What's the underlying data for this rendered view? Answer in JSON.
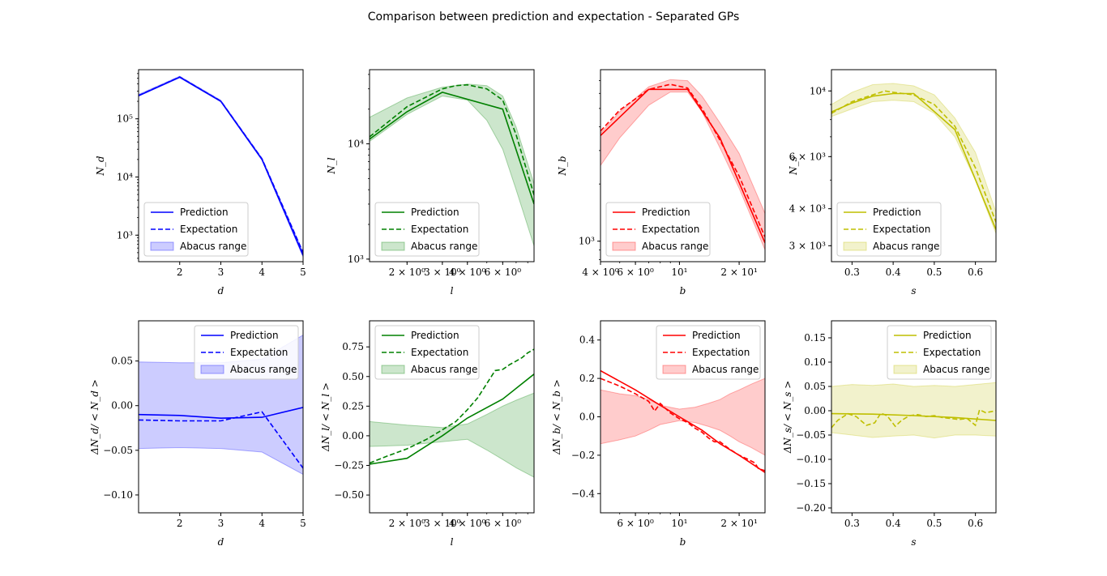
{
  "figure_title": "Comparison between prediction and expectation - Separated GPs",
  "colors": {
    "d": "#0000ff",
    "l": "#008000",
    "b": "#ff0000",
    "s": "#bfbf00"
  },
  "legend_labels": [
    "Prediction",
    "Expectation",
    "Abacus range"
  ],
  "chart_data": [
    {
      "type": "line",
      "row": "top",
      "var": "d",
      "title": "",
      "xlabel": "d",
      "ylabel": "N_d",
      "xscale": "linear",
      "yscale": "log",
      "xlim": [
        1,
        5
      ],
      "ylim": [
        350,
        700000
      ],
      "xticks": [
        {
          "v": 2,
          "label": "2"
        },
        {
          "v": 3,
          "label": "3"
        },
        {
          "v": 4,
          "label": "4"
        },
        {
          "v": 5,
          "label": "5"
        }
      ],
      "yticks": [
        {
          "v": 1000,
          "label": "10³"
        },
        {
          "v": 10000,
          "label": "10⁴"
        },
        {
          "v": 100000,
          "label": "10⁵"
        }
      ],
      "legend": "lower-left",
      "series": [
        {
          "name": "Prediction",
          "style": "solid",
          "x": [
            1,
            2,
            3,
            4,
            5
          ],
          "y": [
            250000,
            520000,
            200000,
            20000,
            450
          ]
        },
        {
          "name": "Expectation",
          "style": "dashed",
          "x": [
            1,
            2,
            3,
            4,
            5
          ],
          "y": [
            252000,
            525000,
            202000,
            20500,
            500
          ]
        },
        {
          "name": "Abacus range",
          "style": "band",
          "x": [
            1,
            2,
            3,
            4,
            5
          ],
          "lower": [
            245000,
            510000,
            196000,
            19500,
            420
          ],
          "upper": [
            262000,
            540000,
            208000,
            21000,
            520
          ]
        }
      ]
    },
    {
      "type": "line",
      "row": "top",
      "var": "l",
      "title": "",
      "xlabel": "l",
      "ylabel": "N_l",
      "xscale": "log",
      "yscale": "log",
      "xlim": [
        1.3,
        8.6
      ],
      "ylim": [
        950,
        44000
      ],
      "xticks": [
        {
          "v": 2,
          "label": "2 × 10⁰"
        },
        {
          "v": 3,
          "label": "3 × 10⁰"
        },
        {
          "v": 4,
          "label": "4 × 10⁰"
        },
        {
          "v": 6,
          "label": "6 × 10⁰"
        }
      ],
      "yticks": [
        {
          "v": 1000,
          "label": "10³"
        },
        {
          "v": 10000,
          "label": "10⁴"
        }
      ],
      "legend": "lower-left",
      "series": [
        {
          "name": "Prediction",
          "style": "solid",
          "x": [
            1.3,
            2,
            3,
            6,
            8.6
          ],
          "y": [
            11000,
            19000,
            28000,
            20000,
            3000
          ]
        },
        {
          "name": "Expectation",
          "style": "dashed",
          "x": [
            1.3,
            2,
            3,
            3.5,
            4,
            5,
            6,
            7,
            8.6
          ],
          "y": [
            11500,
            21000,
            30000,
            32000,
            32500,
            30000,
            24000,
            12000,
            3600
          ]
        },
        {
          "name": "Abacus range",
          "style": "band",
          "x": [
            1.3,
            2,
            3,
            4,
            5,
            6,
            7,
            8.6
          ],
          "lower": [
            10500,
            18000,
            26000,
            24000,
            16000,
            9000,
            4000,
            1300
          ],
          "upper": [
            17000,
            25000,
            31000,
            33000,
            32000,
            26000,
            14000,
            4500
          ]
        }
      ]
    },
    {
      "type": "line",
      "row": "top",
      "var": "b",
      "title": "",
      "xlabel": "b",
      "ylabel": "N_b",
      "xscale": "log",
      "yscale": "log",
      "xlim": [
        4,
        27
      ],
      "ylim": [
        780,
        8000
      ],
      "xticks": [
        {
          "v": 4,
          "label": "4 × 10⁰"
        },
        {
          "v": 6,
          "label": "6 × 10⁰"
        },
        {
          "v": 10,
          "label": "10¹"
        },
        {
          "v": 20,
          "label": "2 × 10¹"
        }
      ],
      "yticks": [
        {
          "v": 1000,
          "label": "10³"
        }
      ],
      "legend": "lower-left",
      "series": [
        {
          "name": "Prediction",
          "style": "solid",
          "x": [
            4,
            7,
            11,
            16,
            27
          ],
          "y": [
            3600,
            6300,
            6300,
            3500,
            980
          ]
        },
        {
          "name": "Expectation",
          "style": "dashed",
          "x": [
            4,
            5,
            7,
            9,
            11,
            13,
            16,
            20,
            27
          ],
          "y": [
            3800,
            4900,
            6300,
            6700,
            6400,
            5000,
            3400,
            2200,
            1050
          ]
        },
        {
          "name": "Abacus range",
          "style": "band",
          "x": [
            4,
            5,
            7,
            9,
            11,
            13,
            16,
            20,
            27
          ],
          "lower": [
            2500,
            3500,
            5200,
            6100,
            6100,
            4800,
            3100,
            1900,
            900
          ],
          "upper": [
            3700,
            4800,
            6500,
            7100,
            7000,
            5800,
            4200,
            2900,
            1400
          ]
        }
      ]
    },
    {
      "type": "line",
      "row": "top",
      "var": "s",
      "title": "",
      "xlabel": "s",
      "ylabel": "N_s",
      "xscale": "linear",
      "yscale": "log",
      "xlim": [
        0.25,
        0.65
      ],
      "ylim": [
        2650,
        11800
      ],
      "xticks": [
        {
          "v": 0.3,
          "label": "0.3"
        },
        {
          "v": 0.4,
          "label": "0.4"
        },
        {
          "v": 0.5,
          "label": "0.5"
        },
        {
          "v": 0.6,
          "label": "0.6"
        }
      ],
      "yticks": [
        {
          "v": 3000,
          "label": "3 × 10³"
        },
        {
          "v": 4000,
          "label": "4 × 10³"
        },
        {
          "v": 6000,
          "label": "6 × 10³"
        },
        {
          "v": 10000,
          "label": "10⁴"
        }
      ],
      "legend": "lower-left",
      "series": [
        {
          "name": "Prediction",
          "style": "solid",
          "x": [
            0.25,
            0.3,
            0.35,
            0.4,
            0.45,
            0.55,
            0.65
          ],
          "y": [
            8500,
            9100,
            9600,
            9800,
            9800,
            7400,
            3400
          ]
        },
        {
          "name": "Expectation",
          "style": "dashed",
          "x": [
            0.25,
            0.3,
            0.35,
            0.38,
            0.4,
            0.45,
            0.5,
            0.55,
            0.6,
            0.65
          ],
          "y": [
            8400,
            9200,
            9700,
            10000,
            9900,
            9700,
            9000,
            7600,
            5500,
            3600
          ]
        },
        {
          "name": "Abacus range",
          "style": "band",
          "x": [
            0.25,
            0.3,
            0.35,
            0.4,
            0.45,
            0.5,
            0.55,
            0.6,
            0.65
          ],
          "lower": [
            8200,
            8700,
            9200,
            9300,
            9200,
            8400,
            7000,
            5000,
            3300
          ],
          "upper": [
            9000,
            9900,
            10500,
            10600,
            10400,
            9700,
            8100,
            6200,
            3900
          ]
        }
      ]
    },
    {
      "type": "line",
      "row": "bottom",
      "var": "d",
      "title": "",
      "xlabel": "d",
      "ylabel": "ΔN_d/ < N_d >",
      "xscale": "linear",
      "yscale": "linear",
      "xlim": [
        1,
        5
      ],
      "ylim": [
        -0.12,
        0.095
      ],
      "xticks": [
        {
          "v": 2,
          "label": "2"
        },
        {
          "v": 3,
          "label": "3"
        },
        {
          "v": 4,
          "label": "4"
        },
        {
          "v": 5,
          "label": "5"
        }
      ],
      "yticks": [
        {
          "v": -0.1,
          "label": "−0.10"
        },
        {
          "v": -0.05,
          "label": "−0.05"
        },
        {
          "v": 0.0,
          "label": "0.00"
        },
        {
          "v": 0.05,
          "label": "0.05"
        }
      ],
      "legend": "upper-right",
      "series": [
        {
          "name": "Prediction",
          "style": "solid",
          "x": [
            1,
            2,
            3,
            4,
            5
          ],
          "y": [
            -0.01,
            -0.011,
            -0.014,
            -0.013,
            -0.002
          ]
        },
        {
          "name": "Expectation",
          "style": "dashed",
          "x": [
            1,
            2,
            3,
            4,
            5
          ],
          "y": [
            -0.016,
            -0.017,
            -0.017,
            -0.007,
            -0.07
          ]
        },
        {
          "name": "Abacus range",
          "style": "band",
          "x": [
            1,
            2,
            3,
            4,
            5
          ],
          "lower": [
            -0.048,
            -0.047,
            -0.048,
            -0.052,
            -0.077
          ],
          "upper": [
            0.049,
            0.048,
            0.048,
            0.052,
            0.079
          ]
        }
      ]
    },
    {
      "type": "line",
      "row": "bottom",
      "var": "l",
      "title": "",
      "xlabel": "l",
      "ylabel": "ΔN_l/ < N_l >",
      "xscale": "log",
      "yscale": "linear",
      "xlim": [
        1.3,
        8.6
      ],
      "ylim": [
        -0.65,
        0.97
      ],
      "xticks": [
        {
          "v": 2,
          "label": "2 × 10⁰"
        },
        {
          "v": 3,
          "label": "3 × 10⁰"
        },
        {
          "v": 4,
          "label": "4 × 10⁰"
        },
        {
          "v": 6,
          "label": "6 × 10⁰"
        }
      ],
      "yticks": [
        {
          "v": -0.5,
          "label": "−0.50"
        },
        {
          "v": -0.25,
          "label": "−0.25"
        },
        {
          "v": 0.0,
          "label": "0.00"
        },
        {
          "v": 0.25,
          "label": "0.25"
        },
        {
          "v": 0.5,
          "label": "0.50"
        },
        {
          "v": 0.75,
          "label": "0.75"
        }
      ],
      "legend": "upper-left",
      "series": [
        {
          "name": "Prediction",
          "style": "solid",
          "x": [
            1.3,
            2,
            3,
            4,
            6,
            8.6
          ],
          "y": [
            -0.24,
            -0.19,
            0.0,
            0.15,
            0.31,
            0.52
          ]
        },
        {
          "name": "Expectation",
          "style": "dashed",
          "x": [
            1.3,
            1.6,
            2,
            2.5,
            3,
            3.5,
            4,
            4.5,
            5,
            5.5,
            6,
            6.5,
            7,
            7.5,
            8,
            8.6
          ],
          "y": [
            -0.23,
            -0.17,
            -0.11,
            -0.03,
            0.05,
            0.12,
            0.22,
            0.32,
            0.44,
            0.55,
            0.56,
            0.6,
            0.63,
            0.66,
            0.7,
            0.73
          ]
        },
        {
          "name": "Abacus range",
          "style": "band",
          "x": [
            1.3,
            2,
            3,
            4,
            5,
            6,
            7,
            8.6
          ],
          "lower": [
            -0.09,
            -0.08,
            -0.05,
            -0.03,
            -0.12,
            -0.2,
            -0.27,
            -0.35
          ],
          "upper": [
            0.12,
            0.09,
            0.07,
            0.1,
            0.18,
            0.25,
            0.3,
            0.36
          ]
        }
      ]
    },
    {
      "type": "line",
      "row": "bottom",
      "var": "b",
      "title": "",
      "xlabel": "b",
      "ylabel": "ΔN_b/ < N_b >",
      "xscale": "log",
      "yscale": "linear",
      "xlim": [
        4,
        27
      ],
      "ylim": [
        -0.5,
        0.5
      ],
      "xticks": [
        {
          "v": 6,
          "label": "6 × 10⁰"
        },
        {
          "v": 10,
          "label": "10¹"
        },
        {
          "v": 20,
          "label": "2 × 10¹"
        }
      ],
      "yticks": [
        {
          "v": -0.4,
          "label": "−0.4"
        },
        {
          "v": -0.2,
          "label": "−0.2"
        },
        {
          "v": 0.0,
          "label": "0.0"
        },
        {
          "v": 0.2,
          "label": "0.2"
        },
        {
          "v": 0.4,
          "label": "0.4"
        }
      ],
      "legend": "upper-right",
      "series": [
        {
          "name": "Prediction",
          "style": "solid",
          "x": [
            4,
            6,
            8,
            10,
            13,
            16,
            20,
            27
          ],
          "y": [
            0.24,
            0.14,
            0.06,
            0.0,
            -0.07,
            -0.14,
            -0.2,
            -0.29
          ]
        },
        {
          "name": "Expectation",
          "style": "dashed",
          "x": [
            4,
            5,
            6,
            7,
            7.5,
            8,
            9,
            10,
            11,
            12,
            13,
            14,
            15,
            16,
            18,
            20,
            22,
            24,
            25,
            27
          ],
          "y": [
            0.2,
            0.16,
            0.12,
            0.08,
            0.03,
            0.07,
            0.02,
            -0.01,
            -0.03,
            -0.06,
            -0.08,
            -0.11,
            -0.13,
            -0.13,
            -0.17,
            -0.2,
            -0.22,
            -0.24,
            -0.27,
            -0.28
          ]
        },
        {
          "name": "Abacus range",
          "style": "band",
          "x": [
            4,
            5,
            6,
            7,
            8,
            10,
            12,
            14,
            16,
            18,
            20,
            23,
            27
          ],
          "lower": [
            -0.14,
            -0.12,
            -0.1,
            -0.07,
            -0.04,
            -0.02,
            -0.03,
            -0.05,
            -0.07,
            -0.1,
            -0.13,
            -0.16,
            -0.2
          ],
          "upper": [
            0.14,
            0.12,
            0.11,
            0.09,
            0.06,
            0.04,
            0.05,
            0.07,
            0.09,
            0.12,
            0.14,
            0.17,
            0.2
          ]
        }
      ]
    },
    {
      "type": "line",
      "row": "bottom",
      "var": "s",
      "title": "",
      "xlabel": "s",
      "ylabel": "ΔN_s/ < N_s >",
      "xscale": "linear",
      "yscale": "linear",
      "xlim": [
        0.25,
        0.65
      ],
      "ylim": [
        -0.21,
        0.185
      ],
      "xticks": [
        {
          "v": 0.3,
          "label": "0.3"
        },
        {
          "v": 0.4,
          "label": "0.4"
        },
        {
          "v": 0.5,
          "label": "0.5"
        },
        {
          "v": 0.6,
          "label": "0.6"
        }
      ],
      "yticks": [
        {
          "v": -0.2,
          "label": "−0.20"
        },
        {
          "v": -0.15,
          "label": "−0.15"
        },
        {
          "v": -0.1,
          "label": "−0.10"
        },
        {
          "v": -0.05,
          "label": "−0.05"
        },
        {
          "v": 0.0,
          "label": "0.00"
        },
        {
          "v": 0.05,
          "label": "0.05"
        },
        {
          "v": 0.1,
          "label": "0.10"
        },
        {
          "v": 0.15,
          "label": "0.15"
        }
      ],
      "legend": "upper-right",
      "series": [
        {
          "name": "Prediction",
          "style": "solid",
          "x": [
            0.25,
            0.35,
            0.45,
            0.55,
            0.65
          ],
          "y": [
            -0.006,
            -0.007,
            -0.01,
            -0.014,
            -0.02
          ]
        },
        {
          "name": "Expectation",
          "style": "dashed",
          "x": [
            0.25,
            0.265,
            0.29,
            0.31,
            0.335,
            0.355,
            0.37,
            0.385,
            0.405,
            0.42,
            0.44,
            0.46,
            0.48,
            0.5,
            0.52,
            0.54,
            0.56,
            0.58,
            0.6,
            0.61,
            0.625,
            0.65
          ],
          "y": [
            -0.035,
            -0.02,
            -0.006,
            -0.012,
            -0.03,
            -0.025,
            -0.005,
            -0.01,
            -0.032,
            -0.02,
            -0.01,
            -0.008,
            -0.012,
            -0.01,
            -0.014,
            -0.016,
            -0.018,
            -0.016,
            -0.03,
            0.002,
            -0.004,
            0.0
          ]
        },
        {
          "name": "Abacus range",
          "style": "band",
          "x": [
            0.25,
            0.3,
            0.35,
            0.4,
            0.45,
            0.5,
            0.55,
            0.6,
            0.65
          ],
          "lower": [
            -0.045,
            -0.05,
            -0.055,
            -0.052,
            -0.05,
            -0.056,
            -0.05,
            -0.05,
            -0.052
          ],
          "upper": [
            0.05,
            0.054,
            0.052,
            0.055,
            0.05,
            0.052,
            0.05,
            0.054,
            0.058
          ]
        }
      ]
    }
  ]
}
